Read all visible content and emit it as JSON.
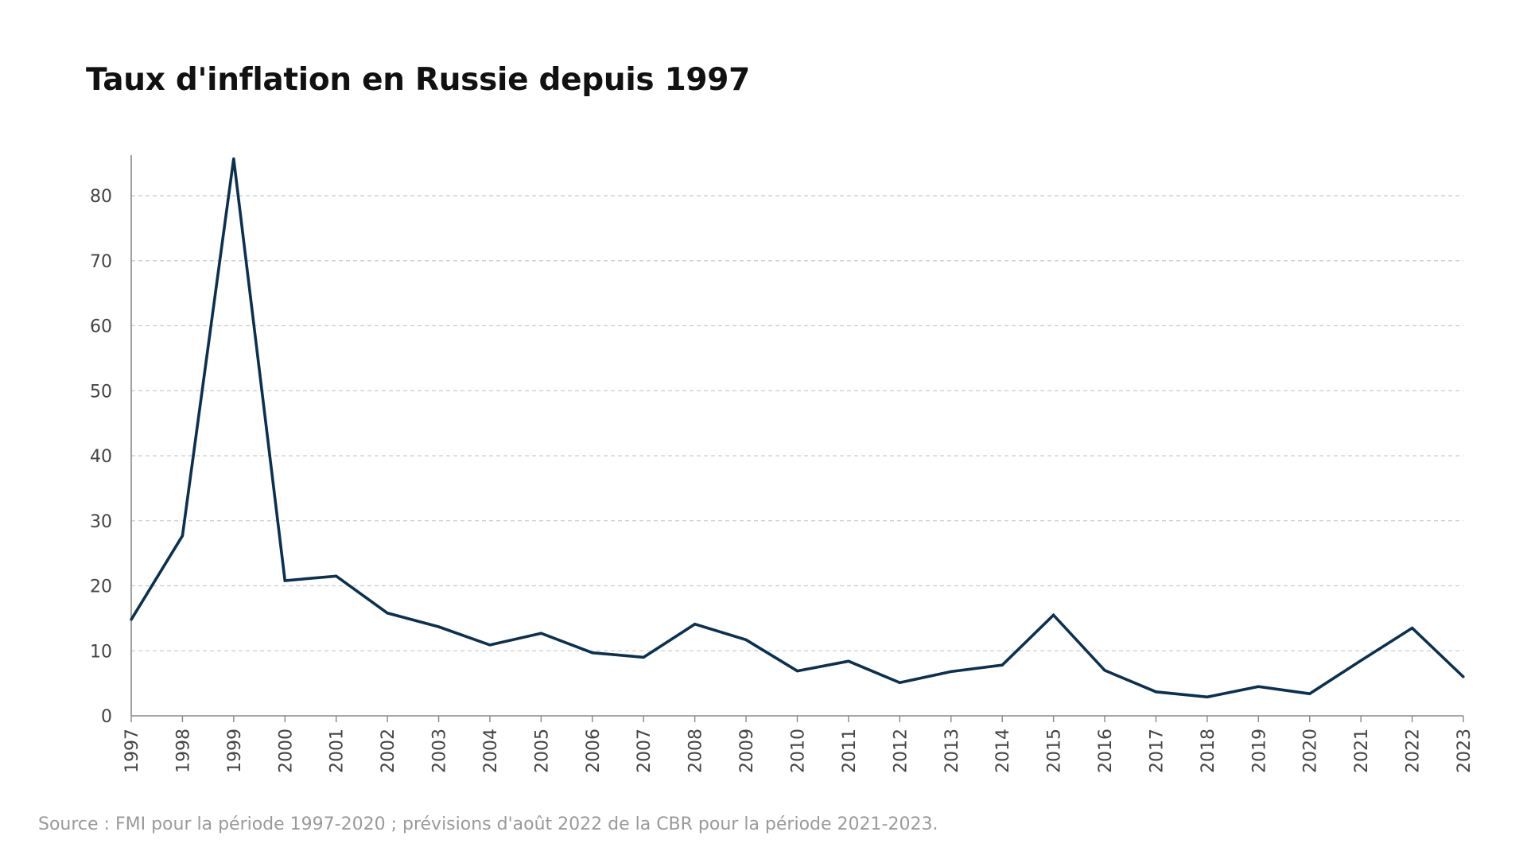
{
  "chart_data": {
    "type": "line",
    "title": "Taux d'inflation en Russie depuis 1997",
    "source": "Source : FMI pour la période 1997-2020 ; prévisions d'août 2022 de la CBR pour la période 2021-2023.",
    "xlabel": "",
    "ylabel": "",
    "x": [
      "1997",
      "1998",
      "1999",
      "2000",
      "2001",
      "2002",
      "2003",
      "2004",
      "2005",
      "2006",
      "2007",
      "2008",
      "2009",
      "2010",
      "2011",
      "2012",
      "2013",
      "2014",
      "2015",
      "2016",
      "2017",
      "2018",
      "2019",
      "2020",
      "2021",
      "2022",
      "2023"
    ],
    "series": [
      {
        "color": "#0b3050",
        "values": [
          14.8,
          27.7,
          85.7,
          20.8,
          21.5,
          15.8,
          13.7,
          10.9,
          12.7,
          9.7,
          9.0,
          14.1,
          11.7,
          6.9,
          8.4,
          5.1,
          6.8,
          7.8,
          15.5,
          7.0,
          3.7,
          2.9,
          4.5,
          3.4,
          8.5,
          13.5,
          6.0
        ]
      }
    ],
    "yticks": [
      "0",
      "10",
      "20",
      "30",
      "40",
      "50",
      "60",
      "70",
      "80"
    ],
    "ylim": [
      0,
      86
    ],
    "grid": true,
    "grid_style": "dashed-horizontal",
    "legend": "none",
    "axis_color": "#888888",
    "grid_color": "#cccccc"
  }
}
